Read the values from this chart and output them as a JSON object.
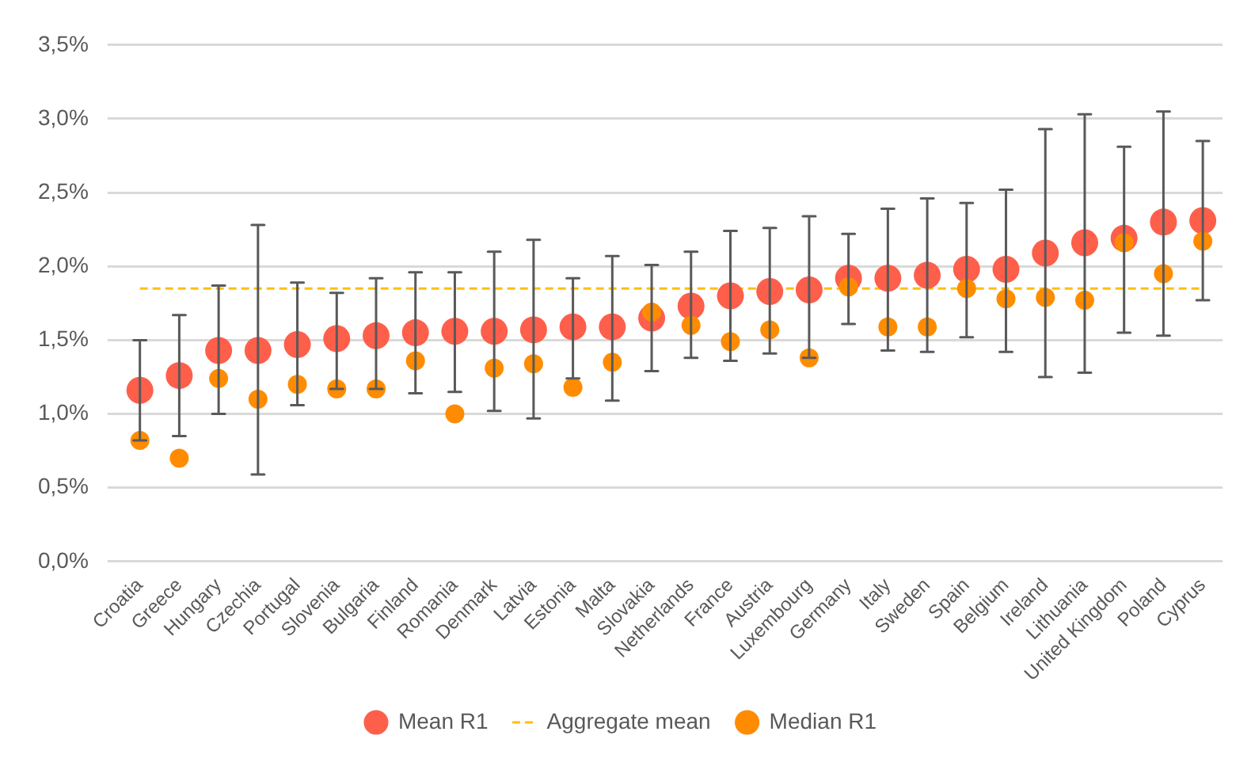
{
  "chart_data": {
    "type": "scatter",
    "categories": [
      "Croatia",
      "Greece",
      "Hungary",
      "Czechia",
      "Portugal",
      "Slovenia",
      "Bulgaria",
      "Finland",
      "Romania",
      "Denmark",
      "Latvia",
      "Estonia",
      "Malta",
      "Slovakia",
      "Netherlands",
      "France",
      "Austria",
      "Luxembourg",
      "Germany",
      "Italy",
      "Sweden",
      "Spain",
      "Belgium",
      "Ireland",
      "Lithuania",
      "United Kingdom",
      "Poland",
      "Cyprus"
    ],
    "series": [
      {
        "name": "Mean R1",
        "color": "#fe5f4b",
        "marker": "circle",
        "values": [
          1.16,
          1.26,
          1.43,
          1.43,
          1.47,
          1.51,
          1.53,
          1.55,
          1.56,
          1.56,
          1.57,
          1.59,
          1.59,
          1.65,
          1.73,
          1.8,
          1.83,
          1.84,
          1.92,
          1.92,
          1.94,
          1.98,
          1.98,
          2.09,
          2.16,
          2.19,
          2.3,
          2.31
        ],
        "errors": [
          [
            0.82,
            1.5
          ],
          [
            0.85,
            1.67
          ],
          [
            1.0,
            1.87
          ],
          [
            0.59,
            2.28
          ],
          [
            1.06,
            1.89
          ],
          [
            1.17,
            1.82
          ],
          [
            1.17,
            1.92
          ],
          [
            1.14,
            1.96
          ],
          [
            1.15,
            1.96
          ],
          [
            1.02,
            2.1
          ],
          [
            0.97,
            2.18
          ],
          [
            1.24,
            1.92
          ],
          [
            1.09,
            2.07
          ],
          [
            1.29,
            2.01
          ],
          [
            1.38,
            2.1
          ],
          [
            1.36,
            2.24
          ],
          [
            1.41,
            2.26
          ],
          [
            1.38,
            2.34
          ],
          [
            1.61,
            2.22
          ],
          [
            1.43,
            2.39
          ],
          [
            1.42,
            2.46
          ],
          [
            1.52,
            2.43
          ],
          [
            1.42,
            2.52
          ],
          [
            1.25,
            2.93
          ],
          [
            1.28,
            3.03
          ],
          [
            1.55,
            2.81
          ],
          [
            1.53,
            3.05
          ],
          [
            1.77,
            2.85
          ]
        ]
      },
      {
        "name": "Median R1",
        "color": "#ff8c00",
        "marker": "circle",
        "values": [
          0.82,
          0.7,
          1.24,
          1.1,
          1.2,
          1.17,
          1.17,
          1.36,
          1.0,
          1.31,
          1.34,
          1.18,
          1.35,
          1.69,
          1.6,
          1.49,
          1.57,
          1.38,
          1.86,
          1.59,
          1.59,
          1.85,
          1.78,
          1.79,
          1.77,
          2.16,
          1.95,
          2.17
        ]
      }
    ],
    "ref_lines": [
      {
        "axis": "y",
        "value": 1.85,
        "label": "Aggregate mean",
        "color": "#ffc000",
        "line_style": "dashed"
      }
    ],
    "ylim": [
      0,
      3.5
    ],
    "yticks": [
      {
        "value": 0,
        "label": "0,0%"
      },
      {
        "value": 0.5,
        "label": "0,5%"
      },
      {
        "value": 1,
        "label": "1,0%"
      },
      {
        "value": 1.5,
        "label": "1,5%"
      },
      {
        "value": 2,
        "label": "2,0%"
      },
      {
        "value": 2.5,
        "label": "2,5%"
      },
      {
        "value": 3,
        "label": "3,0%"
      },
      {
        "value": 3.5,
        "label": "3,5%"
      }
    ],
    "grid": "y",
    "legend": "bottom"
  }
}
